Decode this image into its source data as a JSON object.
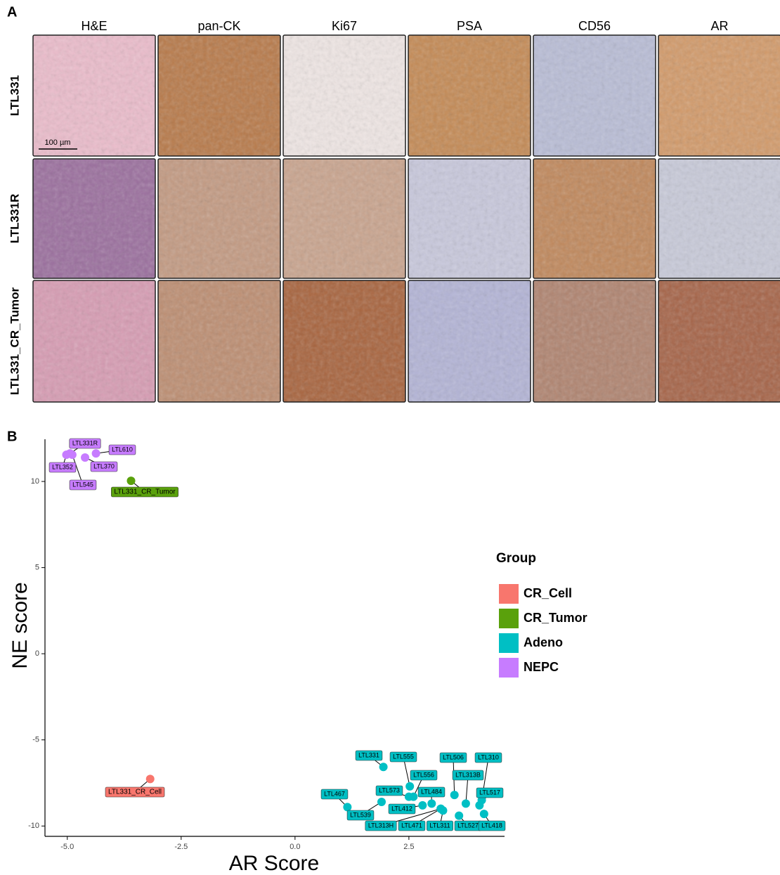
{
  "panel_a": {
    "label": "A",
    "columns": [
      "H&E",
      "pan-CK",
      "Ki67",
      "PSA",
      "CD56",
      "AR"
    ],
    "rows": [
      "LTL331",
      "LTL331R",
      "LTL331_CR_Tumor"
    ],
    "scale_bar": "100 µm"
  },
  "chart_data": {
    "type": "scatter",
    "panel_label": "B",
    "x_label": "AR Score",
    "y_label": "NE score",
    "legend_title": "Group",
    "legend_position": "right",
    "xlim": [
      -5.49,
      4.6
    ],
    "ylim": [
      -10.6,
      12.45
    ],
    "xticks": [
      {
        "value": -5,
        "label": "-5.0"
      },
      {
        "value": -2.5,
        "label": "-2.5"
      },
      {
        "value": 0,
        "label": "0.0"
      },
      {
        "value": 2.5,
        "label": "2.5"
      }
    ],
    "yticks": [
      -10,
      -5,
      0,
      5,
      10
    ],
    "series": [
      {
        "name": "CR_Cell",
        "color": "#f8766d",
        "x": [
          -3.18
        ],
        "y": [
          -7.27
        ],
        "labels": [
          "LTL331_CR_Cell"
        ]
      },
      {
        "name": "CR_Tumor",
        "color": "#5aa10c",
        "x": [
          -3.6
        ],
        "y": [
          10.04
        ],
        "labels": [
          "LTL331_CR_Tumor"
        ]
      },
      {
        "name": "Adeno",
        "color": "#00bfc4",
        "x": [
          1.94,
          2.52,
          2.6,
          2.5,
          3.0,
          2.8,
          3.2,
          3.25,
          1.15,
          1.9,
          3.2,
          3.5,
          3.75,
          4.1,
          4.05,
          3.6,
          4.15
        ],
        "y": [
          -6.57,
          -7.7,
          -8.3,
          -8.3,
          -8.7,
          -8.8,
          -9.0,
          -9.1,
          -8.9,
          -8.6,
          -9.0,
          -8.2,
          -8.7,
          -8.5,
          -8.8,
          -9.4,
          -9.3
        ],
        "labels": [
          "LTL331",
          "LTL555",
          "LTL556",
          "LTL573",
          "LTL484",
          "LTL412",
          "LTL471",
          "LTL311",
          "LTL467",
          "LTL539",
          "LTL313H",
          "LTL506",
          "LTL313B",
          "LTL310",
          "LTL517",
          "LTL527",
          "LTL418"
        ]
      },
      {
        "name": "NEPC",
        "color": "#c77cff",
        "x": [
          -5.02,
          -4.89,
          -4.94,
          -4.61,
          -4.37
        ],
        "y": [
          11.55,
          11.55,
          11.63,
          11.39,
          11.63
        ],
        "labels": [
          "LTL352",
          "LTL545",
          "LTL331R",
          "LTL370",
          "LTL610"
        ]
      }
    ]
  }
}
